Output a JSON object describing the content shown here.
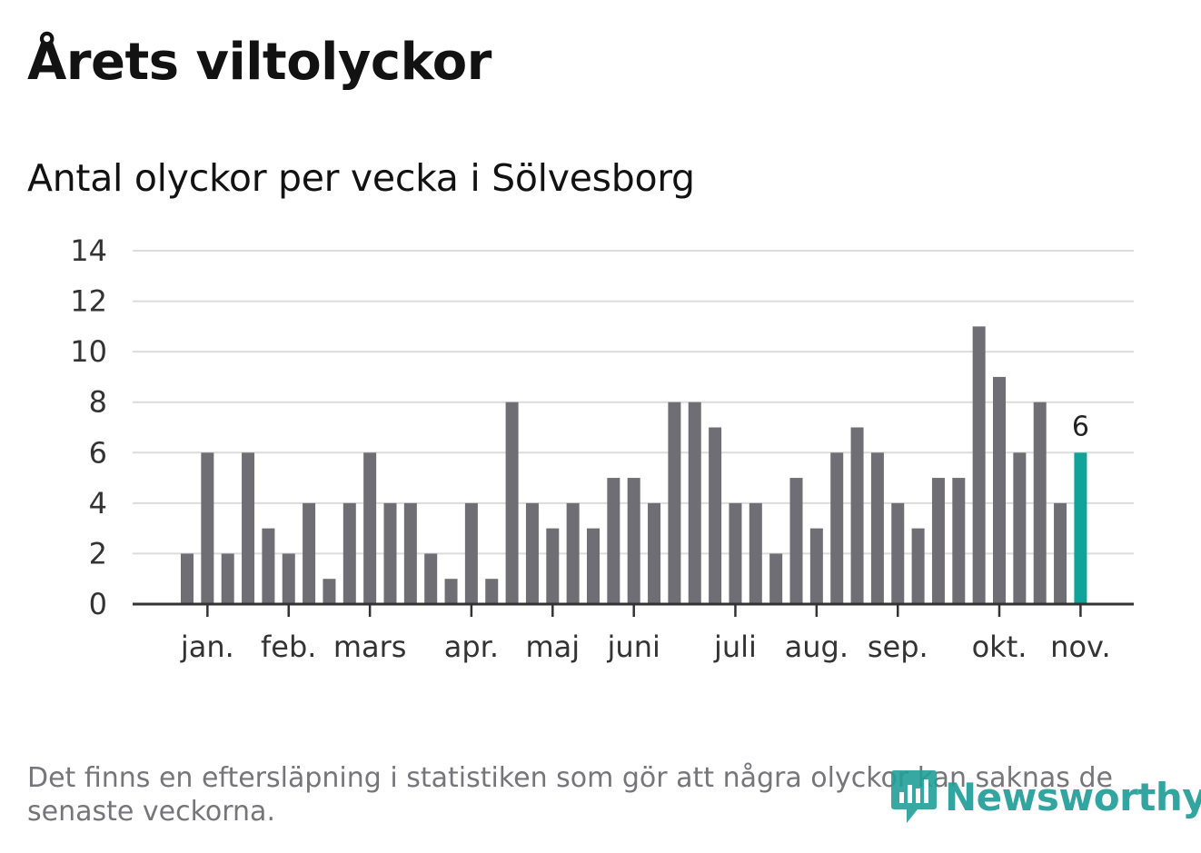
{
  "header": {
    "title": "Årets viltolyckor",
    "subtitle": "Antal olyckor per vecka i Sölvesborg"
  },
  "footer": {
    "note": "Det finns en eftersläpning i statistiken som gör att några olyckor kan saknas de senaste veckorna.",
    "logo_text": "Newsworthy"
  },
  "colors": {
    "bar": "#6f6e74",
    "highlight": "#0fa39a",
    "grid": "#dcdcdc",
    "axis": "#333333"
  },
  "chart_data": {
    "type": "bar",
    "title": "Antal olyckor per vecka i Sölvesborg",
    "xlabel": "",
    "ylabel": "",
    "ylim": [
      0,
      14
    ],
    "yticks": [
      0,
      2,
      4,
      6,
      8,
      10,
      12,
      14
    ],
    "grid": true,
    "values": [
      2,
      6,
      2,
      6,
      3,
      2,
      4,
      1,
      4,
      6,
      4,
      4,
      2,
      1,
      4,
      1,
      8,
      4,
      3,
      4,
      3,
      5,
      5,
      4,
      8,
      8,
      7,
      4,
      4,
      2,
      5,
      3,
      6,
      7,
      6,
      4,
      3,
      5,
      5,
      11,
      9,
      6,
      8,
      4,
      6
    ],
    "highlight_index": 44,
    "highlight_label": "6",
    "month_labels": [
      {
        "label": "jan.",
        "week": 1
      },
      {
        "label": "feb.",
        "week": 5
      },
      {
        "label": "mars",
        "week": 9
      },
      {
        "label": "apr.",
        "week": 14
      },
      {
        "label": "maj",
        "week": 18
      },
      {
        "label": "juni",
        "week": 22
      },
      {
        "label": "juli",
        "week": 27
      },
      {
        "label": "aug.",
        "week": 31
      },
      {
        "label": "sep.",
        "week": 35
      },
      {
        "label": "okt.",
        "week": 40
      },
      {
        "label": "nov.",
        "week": 44
      }
    ]
  }
}
